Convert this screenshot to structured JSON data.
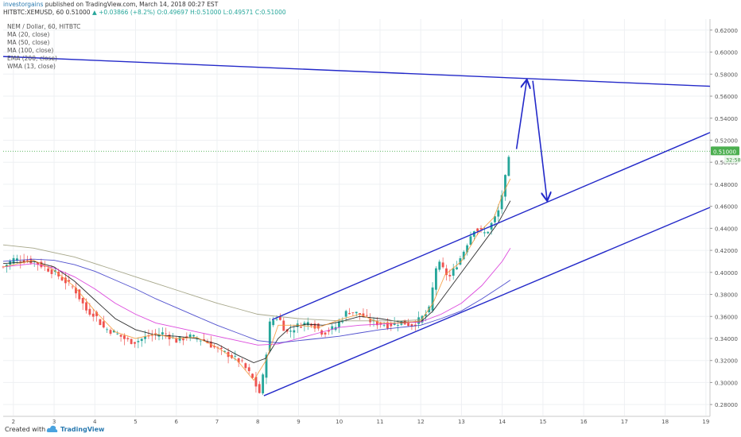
{
  "header": {
    "author": "investorgains",
    "published_text": "published on TradingView.com, March 14, 2018 00:27 EST",
    "symbol_line": "HITBTC:XEMUSD, 60",
    "last_price": "0.51000",
    "change_text": "+0.03866 (+8.2%)",
    "open": "O:0.49697",
    "high": "H:0.51000",
    "low": "L:0.49571",
    "close": "C:0.51000"
  },
  "legend": {
    "title": "NEM / Dollar, 60, HITBTC",
    "indicators": [
      "MA (20, close)",
      "MA (50, close)",
      "MA (100, close)",
      "EMA (200, close)",
      "WMA (13, close)"
    ]
  },
  "footer": {
    "created_with": "Created with",
    "brand": "TradingView"
  },
  "colors": {
    "candle_up": "#26a69a",
    "candle_down": "#ef5350",
    "trendline": "#2329c9",
    "ma20": "#1a1a1a",
    "ma50": "#d936d9",
    "ma100": "#3d3dc9",
    "ema200": "#9c9c7c",
    "wma13": "#f59a3b",
    "price_badge": "#4caf50"
  },
  "chart_data": {
    "type": "line",
    "title": "NEM / Dollar, 60, HITBTC",
    "x_ticks": [
      "2",
      "3",
      "4",
      "5",
      "6",
      "7",
      "8",
      "9",
      "10",
      "11",
      "12",
      "13",
      "14",
      "15",
      "16",
      "17",
      "18",
      "19"
    ],
    "y_ticks": [
      "0.62000",
      "0.60000",
      "0.58000",
      "0.56000",
      "0.54000",
      "0.52000",
      "0.50000",
      "0.48000",
      "0.46000",
      "0.44000",
      "0.42000",
      "0.40000",
      "0.38000",
      "0.36000",
      "0.34000",
      "0.32000",
      "0.30000",
      "0.28000"
    ],
    "ylim": [
      0.27,
      0.63
    ],
    "xlim": [
      1.75,
      19.1
    ],
    "current_price_label": "0.51000",
    "current_price_sublabel": "32:58",
    "price_series": {
      "name": "NEM / Dollar",
      "points": [
        [
          1.75,
          0.405
        ],
        [
          2.0,
          0.412
        ],
        [
          2.5,
          0.41
        ],
        [
          3.0,
          0.4
        ],
        [
          3.5,
          0.385
        ],
        [
          3.8,
          0.365
        ],
        [
          4.0,
          0.362
        ],
        [
          4.2,
          0.35
        ],
        [
          4.5,
          0.345
        ],
        [
          4.8,
          0.338
        ],
        [
          5.0,
          0.337
        ],
        [
          5.3,
          0.342
        ],
        [
          5.7,
          0.345
        ],
        [
          6.0,
          0.338
        ],
        [
          6.3,
          0.342
        ],
        [
          6.5,
          0.34
        ],
        [
          6.7,
          0.338
        ],
        [
          7.0,
          0.33
        ],
        [
          7.3,
          0.325
        ],
        [
          7.6,
          0.318
        ],
        [
          7.85,
          0.305
        ],
        [
          8.05,
          0.29
        ],
        [
          8.15,
          0.31
        ],
        [
          8.3,
          0.355
        ],
        [
          8.5,
          0.36
        ],
        [
          8.7,
          0.345
        ],
        [
          9.0,
          0.352
        ],
        [
          9.3,
          0.355
        ],
        [
          9.6,
          0.345
        ],
        [
          9.9,
          0.35
        ],
        [
          10.2,
          0.365
        ],
        [
          10.5,
          0.362
        ],
        [
          10.8,
          0.355
        ],
        [
          11.2,
          0.352
        ],
        [
          11.5,
          0.355
        ],
        [
          11.8,
          0.352
        ],
        [
          12.0,
          0.358
        ],
        [
          12.2,
          0.365
        ],
        [
          12.4,
          0.41
        ],
        [
          12.7,
          0.395
        ],
        [
          13.0,
          0.415
        ],
        [
          13.3,
          0.44
        ],
        [
          13.6,
          0.435
        ],
        [
          13.9,
          0.455
        ],
        [
          14.1,
          0.49
        ],
        [
          14.2,
          0.51
        ]
      ]
    },
    "moving_averages": [
      {
        "name": "MA (20, close)",
        "points": [
          [
            1.75,
            0.408
          ],
          [
            2.5,
            0.41
          ],
          [
            3.0,
            0.405
          ],
          [
            3.5,
            0.392
          ],
          [
            4.0,
            0.375
          ],
          [
            4.5,
            0.358
          ],
          [
            5.0,
            0.348
          ],
          [
            5.5,
            0.343
          ],
          [
            6.0,
            0.342
          ],
          [
            6.5,
            0.34
          ],
          [
            7.0,
            0.335
          ],
          [
            7.5,
            0.325
          ],
          [
            7.9,
            0.318
          ],
          [
            8.2,
            0.322
          ],
          [
            8.5,
            0.34
          ],
          [
            8.8,
            0.35
          ],
          [
            9.2,
            0.353
          ],
          [
            9.6,
            0.352
          ],
          [
            10.0,
            0.355
          ],
          [
            10.5,
            0.36
          ],
          [
            11.0,
            0.358
          ],
          [
            11.5,
            0.355
          ],
          [
            12.0,
            0.355
          ],
          [
            12.3,
            0.365
          ],
          [
            12.7,
            0.385
          ],
          [
            13.1,
            0.405
          ],
          [
            13.5,
            0.425
          ],
          [
            13.9,
            0.445
          ],
          [
            14.2,
            0.465
          ]
        ]
      },
      {
        "name": "MA (50, close)",
        "points": [
          [
            1.75,
            0.405
          ],
          [
            2.5,
            0.408
          ],
          [
            3.0,
            0.404
          ],
          [
            3.5,
            0.396
          ],
          [
            4.0,
            0.385
          ],
          [
            4.5,
            0.372
          ],
          [
            5.0,
            0.362
          ],
          [
            5.5,
            0.354
          ],
          [
            6.0,
            0.35
          ],
          [
            6.5,
            0.346
          ],
          [
            7.0,
            0.342
          ],
          [
            7.5,
            0.338
          ],
          [
            8.0,
            0.334
          ],
          [
            8.5,
            0.335
          ],
          [
            9.0,
            0.34
          ],
          [
            9.5,
            0.345
          ],
          [
            10.0,
            0.35
          ],
          [
            10.5,
            0.352
          ],
          [
            11.0,
            0.353
          ],
          [
            11.5,
            0.354
          ],
          [
            12.0,
            0.355
          ],
          [
            12.5,
            0.362
          ],
          [
            13.0,
            0.372
          ],
          [
            13.5,
            0.388
          ],
          [
            14.0,
            0.41
          ],
          [
            14.2,
            0.422
          ]
        ]
      },
      {
        "name": "MA (100, close)",
        "points": [
          [
            1.75,
            0.41
          ],
          [
            2.5,
            0.412
          ],
          [
            3.0,
            0.411
          ],
          [
            3.5,
            0.407
          ],
          [
            4.0,
            0.401
          ],
          [
            4.5,
            0.393
          ],
          [
            5.0,
            0.385
          ],
          [
            5.5,
            0.376
          ],
          [
            6.0,
            0.368
          ],
          [
            6.5,
            0.36
          ],
          [
            7.0,
            0.352
          ],
          [
            7.5,
            0.345
          ],
          [
            8.0,
            0.338
          ],
          [
            8.5,
            0.336
          ],
          [
            9.0,
            0.338
          ],
          [
            9.5,
            0.34
          ],
          [
            10.0,
            0.342
          ],
          [
            10.5,
            0.345
          ],
          [
            11.0,
            0.348
          ],
          [
            11.5,
            0.35
          ],
          [
            12.0,
            0.352
          ],
          [
            12.5,
            0.358
          ],
          [
            13.0,
            0.365
          ],
          [
            13.5,
            0.376
          ],
          [
            14.0,
            0.388
          ],
          [
            14.2,
            0.393
          ]
        ]
      },
      {
        "name": "EMA (200, close)",
        "points": [
          [
            1.75,
            0.425
          ],
          [
            2.5,
            0.422
          ],
          [
            3.0,
            0.418
          ],
          [
            3.5,
            0.414
          ],
          [
            4.0,
            0.408
          ],
          [
            4.5,
            0.402
          ],
          [
            5.0,
            0.396
          ],
          [
            5.5,
            0.39
          ],
          [
            6.0,
            0.384
          ],
          [
            6.5,
            0.378
          ],
          [
            7.0,
            0.372
          ],
          [
            7.5,
            0.367
          ],
          [
            8.0,
            0.362
          ],
          [
            8.5,
            0.36
          ],
          [
            9.0,
            0.358
          ],
          [
            9.5,
            0.357
          ],
          [
            10.0,
            0.356
          ],
          [
            10.5,
            0.356
          ],
          [
            11.0,
            0.356
          ],
          [
            11.5,
            0.356
          ],
          [
            12.0,
            0.357
          ]
        ]
      },
      {
        "name": "WMA (13, close)",
        "points": [
          [
            1.75,
            0.405
          ],
          [
            2.5,
            0.411
          ],
          [
            3.0,
            0.402
          ],
          [
            3.5,
            0.387
          ],
          [
            4.0,
            0.365
          ],
          [
            4.5,
            0.346
          ],
          [
            5.0,
            0.34
          ],
          [
            5.5,
            0.344
          ],
          [
            6.0,
            0.34
          ],
          [
            6.5,
            0.341
          ],
          [
            7.0,
            0.332
          ],
          [
            7.5,
            0.32
          ],
          [
            7.9,
            0.302
          ],
          [
            8.2,
            0.32
          ],
          [
            8.5,
            0.352
          ],
          [
            9.0,
            0.352
          ],
          [
            9.5,
            0.35
          ],
          [
            10.0,
            0.357
          ],
          [
            10.5,
            0.362
          ],
          [
            11.0,
            0.354
          ],
          [
            11.5,
            0.354
          ],
          [
            12.0,
            0.356
          ],
          [
            12.3,
            0.372
          ],
          [
            12.6,
            0.398
          ],
          [
            13.0,
            0.41
          ],
          [
            13.4,
            0.435
          ],
          [
            13.8,
            0.45
          ],
          [
            14.0,
            0.47
          ],
          [
            14.2,
            0.485
          ]
        ]
      }
    ],
    "annotations": {
      "trendlines": [
        {
          "name": "resistance",
          "from": [
            1.75,
            0.596
          ],
          "to": [
            19.1,
            0.569
          ]
        },
        {
          "name": "channel-upper",
          "from": [
            8.35,
            0.357
          ],
          "to": [
            19.1,
            0.527
          ]
        },
        {
          "name": "channel-lower",
          "from": [
            8.15,
            0.288
          ],
          "to": [
            19.1,
            0.459
          ]
        }
      ],
      "projection_arrows": [
        {
          "name": "up-arrow",
          "from": [
            14.35,
            0.512
          ],
          "to": [
            14.6,
            0.574
          ]
        },
        {
          "name": "down-arrow",
          "from": [
            14.75,
            0.574
          ],
          "to": [
            15.1,
            0.466
          ]
        }
      ]
    }
  }
}
